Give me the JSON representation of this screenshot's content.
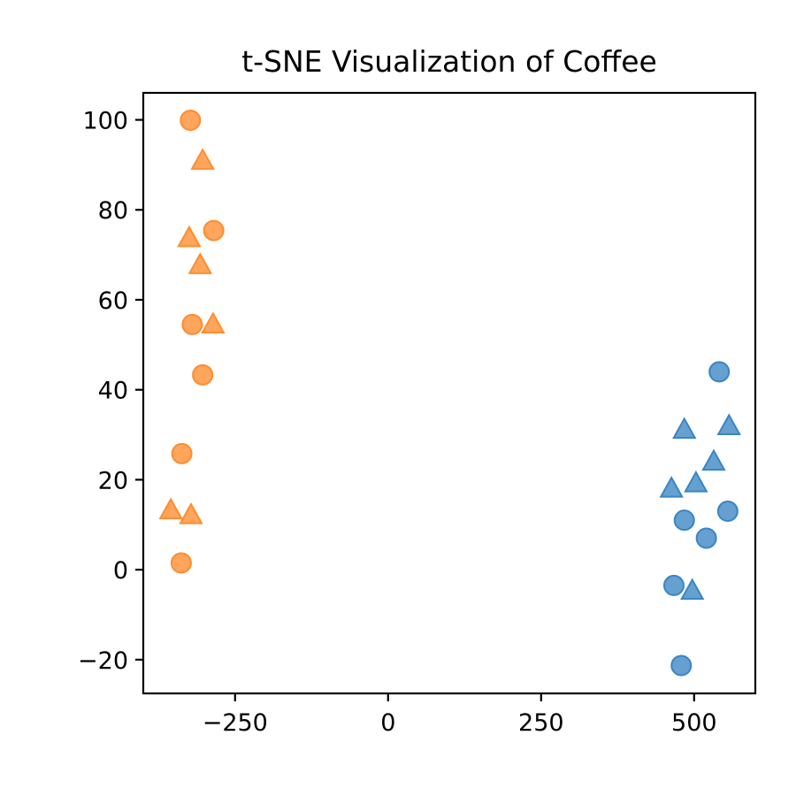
{
  "chart_data": {
    "type": "scatter",
    "title": "t-SNE Visualization of Coffee",
    "xlabel": "",
    "ylabel": "",
    "xlim": [
      -400,
      600
    ],
    "ylim": [
      -27.5,
      106
    ],
    "x_ticks": [
      -250,
      0,
      250,
      500
    ],
    "x_tick_labels": [
      "−250",
      "0",
      "250",
      "500"
    ],
    "y_ticks": [
      -20,
      0,
      20,
      40,
      60,
      80,
      100
    ],
    "y_tick_labels": [
      "−20",
      "0",
      "20",
      "40",
      "60",
      "80",
      "100"
    ],
    "grid": false,
    "legend": "none",
    "series": [
      {
        "color": "#ff8c2e",
        "marker": "circle",
        "points": [
          {
            "x": -323,
            "y": 99.9
          },
          {
            "x": -285,
            "y": 75.4
          },
          {
            "x": -320,
            "y": 54.5
          },
          {
            "x": -303,
            "y": 43.3
          },
          {
            "x": -337,
            "y": 25.8
          },
          {
            "x": -338,
            "y": 1.5
          }
        ]
      },
      {
        "color": "#ff8c2e",
        "marker": "triangle",
        "points": [
          {
            "x": -303,
            "y": 91.0
          },
          {
            "x": -325,
            "y": 73.8
          },
          {
            "x": -307,
            "y": 67.8
          },
          {
            "x": -286,
            "y": 54.6
          },
          {
            "x": -355,
            "y": 13.3
          },
          {
            "x": -322,
            "y": 12.2
          }
        ]
      },
      {
        "color": "#3a85c3",
        "marker": "circle",
        "points": [
          {
            "x": 541,
            "y": 44.0
          },
          {
            "x": 484,
            "y": 11.0
          },
          {
            "x": 555,
            "y": 13.0
          },
          {
            "x": 520,
            "y": 7.0
          },
          {
            "x": 467,
            "y": -3.5
          },
          {
            "x": 479,
            "y": -21.3
          }
        ]
      },
      {
        "color": "#3a85c3",
        "marker": "triangle",
        "points": [
          {
            "x": 484,
            "y": 31.2
          },
          {
            "x": 557,
            "y": 32.0
          },
          {
            "x": 532,
            "y": 24.1
          },
          {
            "x": 503,
            "y": 19.3
          },
          {
            "x": 463,
            "y": 18.1
          },
          {
            "x": 497,
            "y": -4.6
          }
        ]
      }
    ]
  }
}
